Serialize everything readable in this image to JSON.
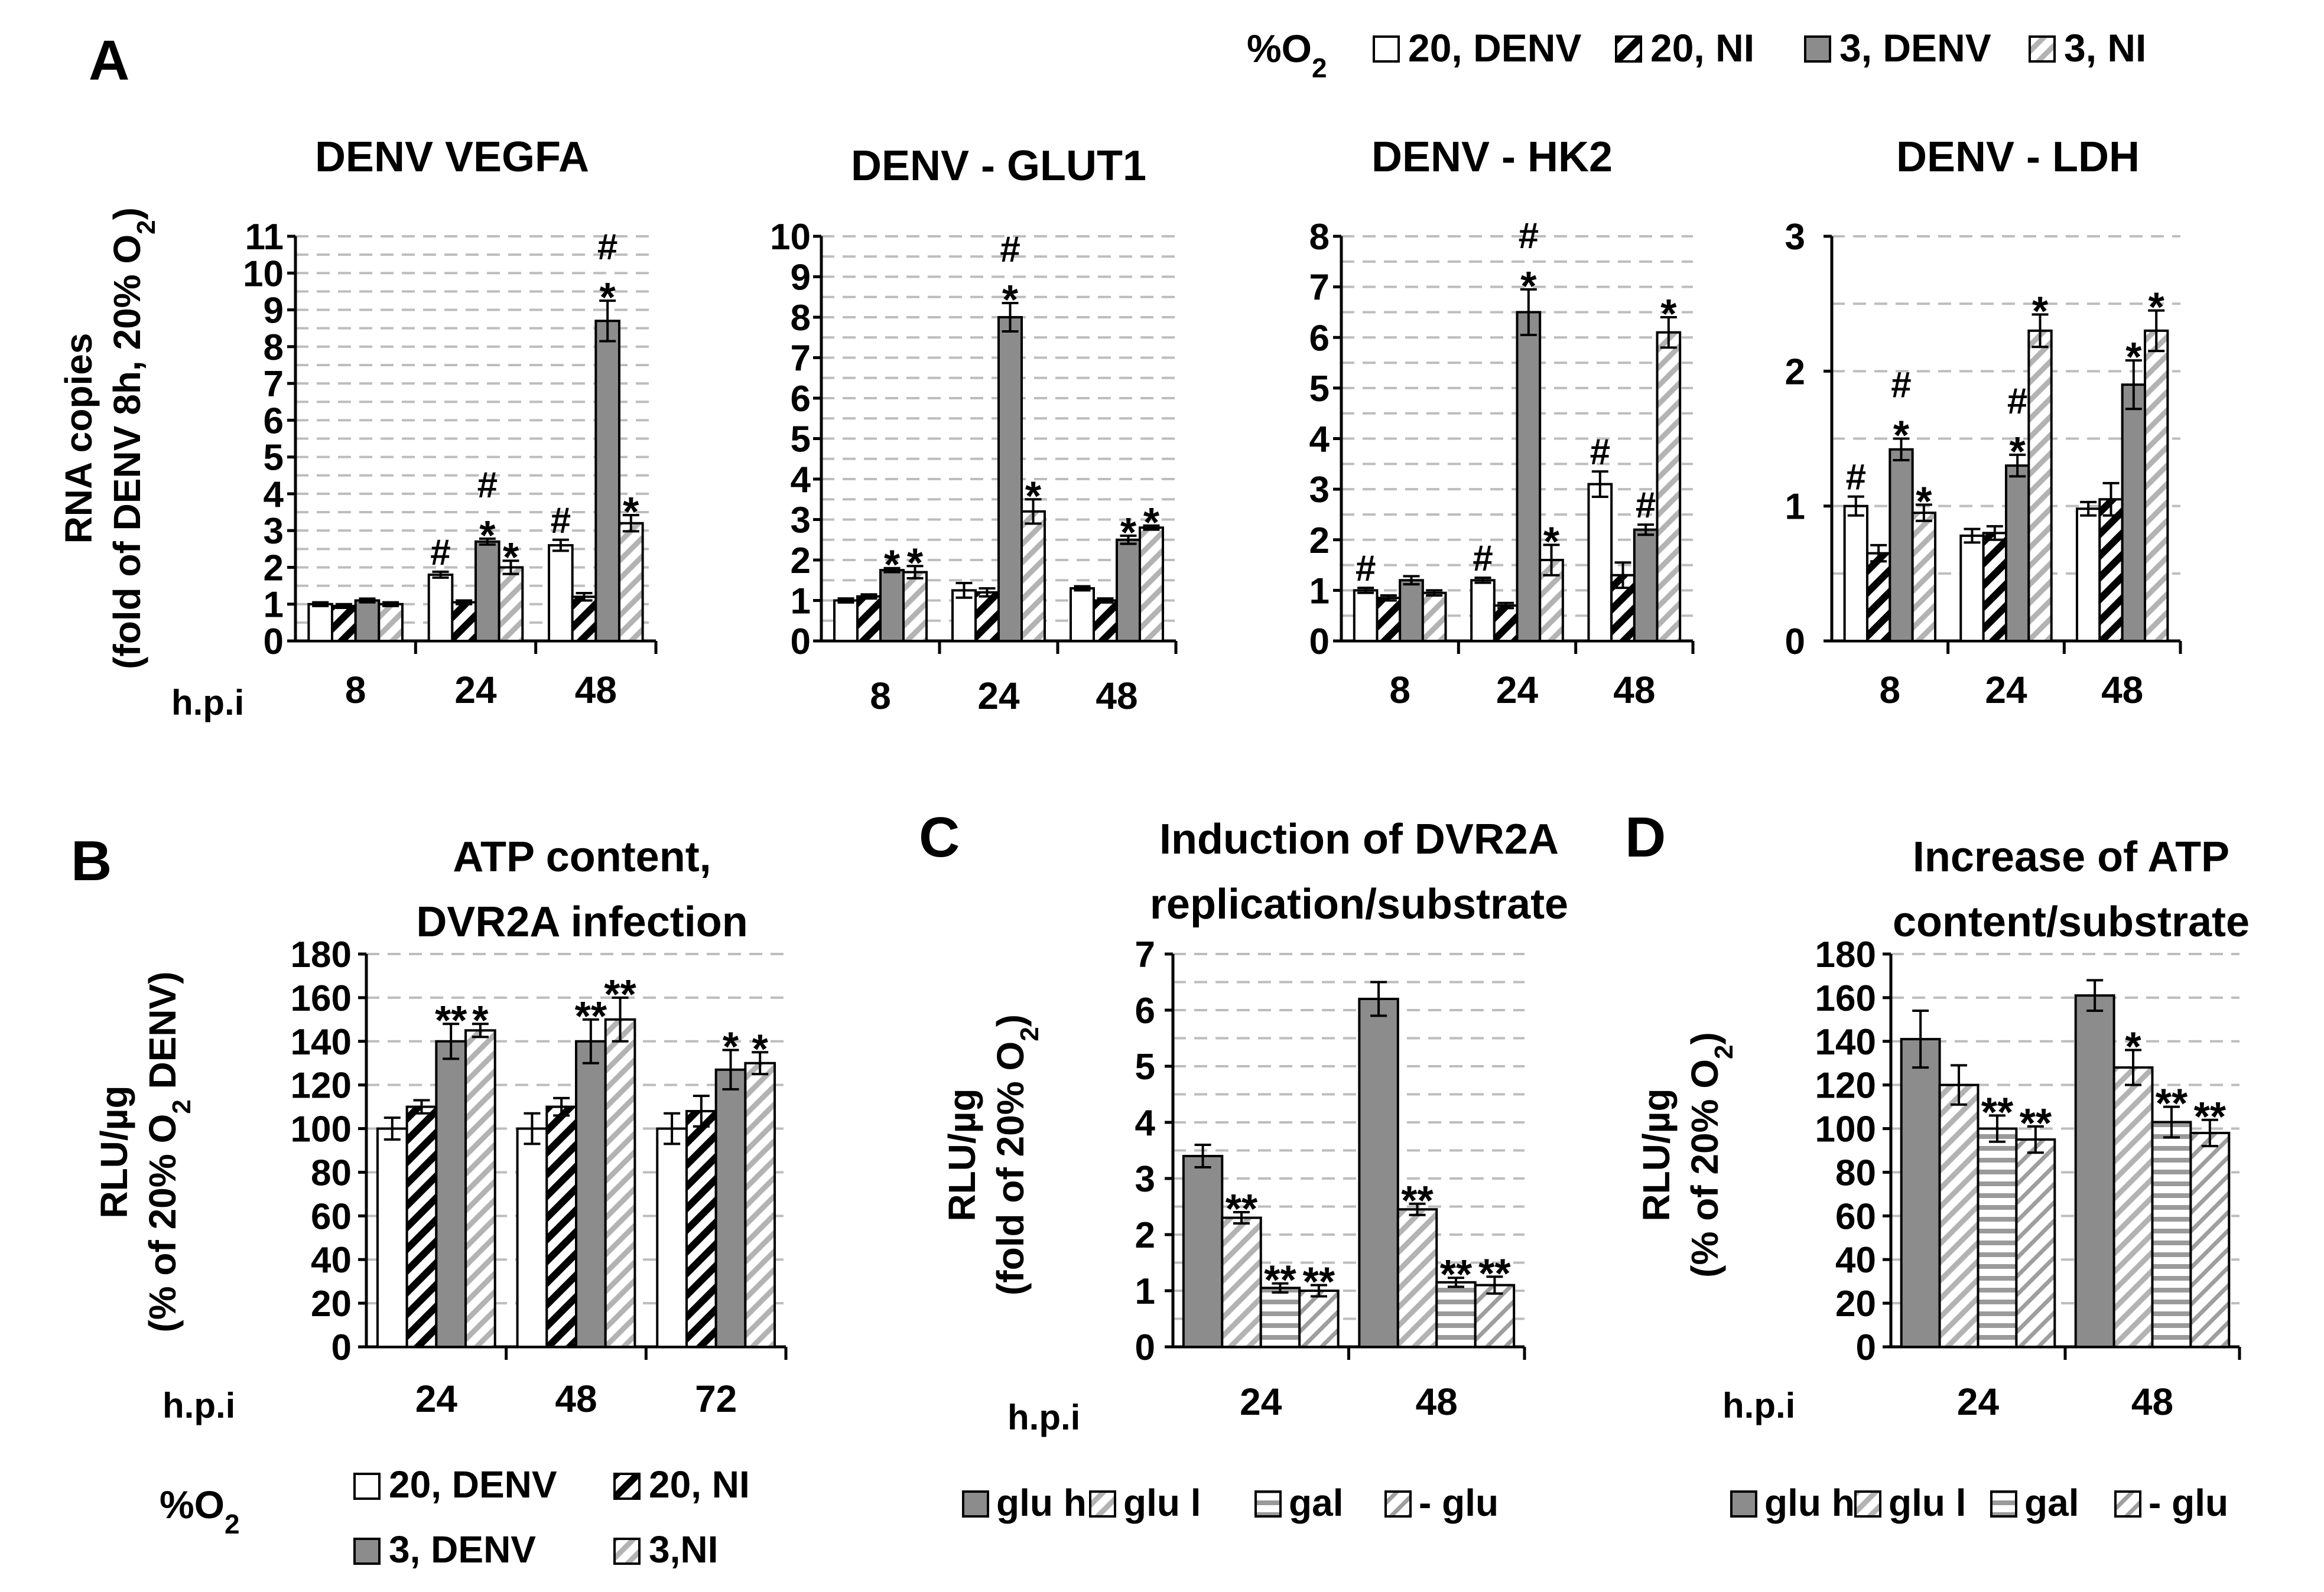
{
  "colors": {
    "white": "#ffffff",
    "gray": "#8c8c8c",
    "ink": "#000000",
    "grid": "#bdbdbd",
    "lightHatch": "#b3b3b3"
  },
  "panels": {
    "A": {
      "letter": "A"
    },
    "B": {
      "letter": "B"
    },
    "C": {
      "letter": "C"
    },
    "D": {
      "letter": "D"
    }
  },
  "legends": {
    "A": {
      "title": "%O",
      "title_sub": "2",
      "items": [
        "20, DENV",
        "20, NI",
        "3, DENV",
        "3, NI"
      ],
      "styles": [
        "white",
        "blackHatch",
        "gray",
        "lightHatch"
      ]
    },
    "B": {
      "title": "%O",
      "title_sub": "2",
      "items": [
        "20, DENV",
        "20, NI",
        "3, DENV",
        "3,NI"
      ],
      "styles": [
        "white",
        "blackHatch",
        "gray",
        "lightHatch"
      ]
    },
    "C": {
      "items": [
        "glu h",
        "glu l",
        "gal",
        "- glu"
      ],
      "styles": [
        "gray",
        "lightHatch",
        "hstripe",
        "lightHatch2"
      ]
    },
    "D": {
      "items": [
        "glu h",
        "glu l",
        "gal",
        "- glu"
      ],
      "styles": [
        "gray",
        "lightHatch",
        "hstripe",
        "lightHatch2"
      ]
    }
  },
  "chart_data": [
    {
      "id": "A1",
      "type": "bar",
      "title": "DENV VEGFA",
      "ylabel": [
        "RNA copies",
        "(fold of DENV 8h, 20% O",
        "2",
        ")"
      ],
      "xprefix": "h.p.i",
      "ylim": [
        0,
        11
      ],
      "yticks": [
        0,
        1,
        2,
        3,
        4,
        5,
        6,
        7,
        8,
        9,
        10,
        11
      ],
      "minor_grid": 0.5,
      "categories": [
        "8",
        "24",
        "48"
      ],
      "styles": [
        "white",
        "blackHatch",
        "gray",
        "lightHatch"
      ],
      "series": [
        {
          "name": "20, DENV",
          "values": [
            1.0,
            1.8,
            2.6
          ],
          "errors": [
            0.05,
            0.08,
            0.15
          ]
        },
        {
          "name": "20, NI",
          "values": [
            0.95,
            1.05,
            1.2
          ],
          "errors": [
            0.05,
            0.05,
            0.1
          ]
        },
        {
          "name": "3, DENV",
          "values": [
            1.1,
            2.7,
            8.7
          ],
          "errors": [
            0.05,
            0.08,
            0.55
          ]
        },
        {
          "name": "3, NI",
          "values": [
            1.0,
            2.0,
            3.2
          ],
          "errors": [
            0.05,
            0.18,
            0.22
          ]
        }
      ],
      "annotations": [
        {
          "cat": 1,
          "s": 0,
          "lines": [
            "#"
          ]
        },
        {
          "cat": 1,
          "s": 2,
          "lines": [
            "#",
            "*"
          ]
        },
        {
          "cat": 1,
          "s": 3,
          "lines": [
            "*"
          ]
        },
        {
          "cat": 2,
          "s": 0,
          "lines": [
            "#"
          ]
        },
        {
          "cat": 2,
          "s": 2,
          "lines": [
            "#",
            "*"
          ]
        },
        {
          "cat": 2,
          "s": 3,
          "lines": [
            "*"
          ]
        }
      ]
    },
    {
      "id": "A2",
      "type": "bar",
      "title": "DENV - GLUT1",
      "ylim": [
        0,
        10
      ],
      "yticks": [
        0,
        1,
        2,
        3,
        4,
        5,
        6,
        7,
        8,
        9,
        10
      ],
      "minor_grid": 0.5,
      "categories": [
        "8",
        "24",
        "48"
      ],
      "styles": [
        "white",
        "blackHatch",
        "gray",
        "lightHatch"
      ],
      "series": [
        {
          "name": "20, DENV",
          "values": [
            1.0,
            1.25,
            1.3
          ],
          "errors": [
            0.05,
            0.18,
            0.05
          ]
        },
        {
          "name": "20, NI",
          "values": [
            1.1,
            1.2,
            1.0
          ],
          "errors": [
            0.05,
            0.1,
            0.05
          ]
        },
        {
          "name": "3, DENV",
          "values": [
            1.75,
            8.0,
            2.5
          ],
          "errors": [
            0.05,
            0.35,
            0.1
          ]
        },
        {
          "name": "3, NI",
          "values": [
            1.7,
            3.2,
            2.8
          ],
          "errors": [
            0.15,
            0.3,
            0.05
          ]
        }
      ],
      "annotations": [
        {
          "cat": 0,
          "s": 2,
          "lines": [
            "*"
          ]
        },
        {
          "cat": 0,
          "s": 3,
          "lines": [
            "*"
          ]
        },
        {
          "cat": 1,
          "s": 2,
          "lines": [
            "#",
            "*"
          ]
        },
        {
          "cat": 1,
          "s": 3,
          "lines": [
            "*"
          ]
        },
        {
          "cat": 2,
          "s": 2,
          "lines": [
            "*"
          ]
        },
        {
          "cat": 2,
          "s": 3,
          "lines": [
            "*"
          ]
        }
      ]
    },
    {
      "id": "A3",
      "type": "bar",
      "title": "DENV - HK2",
      "ylim": [
        0,
        8
      ],
      "yticks": [
        0,
        1,
        2,
        3,
        4,
        5,
        6,
        7,
        8
      ],
      "minor_grid": 0.5,
      "categories": [
        "8",
        "24",
        "48"
      ],
      "styles": [
        "white",
        "blackHatch",
        "gray",
        "lightHatch"
      ],
      "series": [
        {
          "name": "20, DENV",
          "values": [
            1.0,
            1.2,
            3.1
          ],
          "errors": [
            0.05,
            0.05,
            0.25
          ]
        },
        {
          "name": "20, NI",
          "values": [
            0.85,
            0.7,
            1.3
          ],
          "errors": [
            0.05,
            0.05,
            0.25
          ]
        },
        {
          "name": "3, DENV",
          "values": [
            1.2,
            6.5,
            2.2
          ],
          "errors": [
            0.08,
            0.45,
            0.1
          ]
        },
        {
          "name": "3, NI",
          "values": [
            0.95,
            1.6,
            6.1
          ],
          "errors": [
            0.05,
            0.3,
            0.3
          ]
        }
      ],
      "annotations": [
        {
          "cat": 0,
          "s": 0,
          "lines": [
            "#"
          ]
        },
        {
          "cat": 1,
          "s": 0,
          "lines": [
            "#"
          ]
        },
        {
          "cat": 1,
          "s": 2,
          "lines": [
            "#",
            "*"
          ]
        },
        {
          "cat": 1,
          "s": 3,
          "lines": [
            "*"
          ]
        },
        {
          "cat": 2,
          "s": 0,
          "lines": [
            "#"
          ]
        },
        {
          "cat": 2,
          "s": 2,
          "lines": [
            "#"
          ]
        },
        {
          "cat": 2,
          "s": 3,
          "lines": [
            "*"
          ]
        }
      ]
    },
    {
      "id": "A4",
      "type": "bar",
      "title": "DENV - LDH",
      "ylim": [
        0,
        3
      ],
      "yticks": [
        0,
        1,
        2,
        3
      ],
      "minor_grid": 0.5,
      "categories": [
        "8",
        "24",
        "48"
      ],
      "styles": [
        "white",
        "blackHatch",
        "gray",
        "lightHatch"
      ],
      "series": [
        {
          "name": "20, DENV",
          "values": [
            1.0,
            0.78,
            0.98
          ],
          "errors": [
            0.07,
            0.05,
            0.05
          ]
        },
        {
          "name": "20, NI",
          "values": [
            0.65,
            0.8,
            1.05
          ],
          "errors": [
            0.06,
            0.05,
            0.12
          ]
        },
        {
          "name": "3, DENV",
          "values": [
            1.42,
            1.3,
            1.9
          ],
          "errors": [
            0.08,
            0.08,
            0.18
          ]
        },
        {
          "name": "3, NI",
          "values": [
            0.95,
            2.3,
            2.3
          ],
          "errors": [
            0.06,
            0.12,
            0.15
          ]
        }
      ],
      "annotations": [
        {
          "cat": 0,
          "s": 0,
          "lines": [
            "#"
          ]
        },
        {
          "cat": 0,
          "s": 2,
          "lines": [
            "#",
            "*"
          ]
        },
        {
          "cat": 0,
          "s": 3,
          "lines": [
            "*"
          ]
        },
        {
          "cat": 1,
          "s": 2,
          "lines": [
            "#",
            "*"
          ]
        },
        {
          "cat": 1,
          "s": 3,
          "lines": [
            "*"
          ]
        },
        {
          "cat": 2,
          "s": 2,
          "lines": [
            "*"
          ]
        },
        {
          "cat": 2,
          "s": 3,
          "lines": [
            "*"
          ]
        }
      ]
    },
    {
      "id": "B",
      "type": "bar",
      "title": [
        "ATP content,",
        "DVR2A infection"
      ],
      "ylabel": [
        "RLU/µg",
        "(% of 20% O",
        "2",
        " DENV)"
      ],
      "xprefix": "h.p.i",
      "ylim": [
        0,
        180
      ],
      "yticks": [
        0,
        20,
        40,
        60,
        80,
        100,
        120,
        140,
        160,
        180
      ],
      "minor_grid": null,
      "categories": [
        "24",
        "48",
        "72"
      ],
      "styles": [
        "white",
        "blackHatch",
        "gray",
        "lightHatch"
      ],
      "series": [
        {
          "name": "20, DENV",
          "values": [
            100,
            100,
            100
          ],
          "errors": [
            5,
            7,
            7
          ]
        },
        {
          "name": "20, NI",
          "values": [
            110,
            110,
            108
          ],
          "errors": [
            3,
            4,
            7
          ]
        },
        {
          "name": "3, DENV",
          "values": [
            140,
            140,
            127
          ],
          "errors": [
            8,
            10,
            9
          ]
        },
        {
          "name": "3, NI",
          "values": [
            145,
            150,
            130
          ],
          "errors": [
            3,
            10,
            5
          ]
        }
      ],
      "annotations": [
        {
          "cat": 0,
          "s": 2,
          "lines": [
            "**"
          ]
        },
        {
          "cat": 0,
          "s": 3,
          "lines": [
            "*"
          ]
        },
        {
          "cat": 1,
          "s": 2,
          "lines": [
            "**"
          ]
        },
        {
          "cat": 1,
          "s": 3,
          "lines": [
            "**"
          ]
        },
        {
          "cat": 2,
          "s": 2,
          "lines": [
            "*"
          ]
        },
        {
          "cat": 2,
          "s": 3,
          "lines": [
            "*"
          ]
        }
      ]
    },
    {
      "id": "C",
      "type": "bar",
      "title": [
        "Induction of DVR2A",
        "replication/substrate"
      ],
      "ylabel": [
        "RLU/µg",
        "(fold of 20% O",
        "2",
        ")"
      ],
      "xprefix": "h.p.i",
      "ylim": [
        0,
        7
      ],
      "yticks": [
        0,
        1,
        2,
        3,
        4,
        5,
        6,
        7
      ],
      "minor_grid": 0.5,
      "categories": [
        "24",
        "48"
      ],
      "styles": [
        "gray",
        "lightHatch",
        "hstripe",
        "lightHatch2"
      ],
      "series": [
        {
          "name": "glu h",
          "values": [
            3.4,
            6.2
          ],
          "errors": [
            0.2,
            0.3
          ]
        },
        {
          "name": "glu l",
          "values": [
            2.3,
            2.45
          ],
          "errors": [
            0.1,
            0.1
          ]
        },
        {
          "name": "gal",
          "values": [
            1.05,
            1.15
          ],
          "errors": [
            0.08,
            0.08
          ]
        },
        {
          "name": "- glu",
          "values": [
            1.0,
            1.1
          ],
          "errors": [
            0.1,
            0.15
          ]
        }
      ],
      "annotations": [
        {
          "cat": 0,
          "s": 1,
          "lines": [
            "**"
          ]
        },
        {
          "cat": 0,
          "s": 2,
          "lines": [
            "**"
          ]
        },
        {
          "cat": 0,
          "s": 3,
          "lines": [
            "**"
          ]
        },
        {
          "cat": 1,
          "s": 1,
          "lines": [
            "**"
          ]
        },
        {
          "cat": 1,
          "s": 2,
          "lines": [
            "**"
          ]
        },
        {
          "cat": 1,
          "s": 3,
          "lines": [
            "**"
          ]
        }
      ]
    },
    {
      "id": "D",
      "type": "bar",
      "title": [
        "Increase of  ATP",
        "content/substrate"
      ],
      "ylabel": [
        "RLU/µg",
        "(% of 20% O",
        "2",
        ")"
      ],
      "xprefix": "h.p.i",
      "ylim": [
        0,
        180
      ],
      "yticks": [
        0,
        20,
        40,
        60,
        80,
        100,
        120,
        140,
        160,
        180
      ],
      "minor_grid": null,
      "categories": [
        "24",
        "48"
      ],
      "styles": [
        "gray",
        "lightHatch",
        "hstripe",
        "lightHatch2"
      ],
      "series": [
        {
          "name": "glu h",
          "values": [
            141,
            161
          ],
          "errors": [
            13,
            7
          ]
        },
        {
          "name": "glu l",
          "values": [
            120,
            128
          ],
          "errors": [
            9,
            8
          ]
        },
        {
          "name": "gal",
          "values": [
            100,
            103
          ],
          "errors": [
            6,
            7
          ]
        },
        {
          "name": "- glu",
          "values": [
            95,
            98
          ],
          "errors": [
            6,
            6
          ]
        }
      ],
      "annotations": [
        {
          "cat": 0,
          "s": 2,
          "lines": [
            "**"
          ]
        },
        {
          "cat": 0,
          "s": 3,
          "lines": [
            "**"
          ]
        },
        {
          "cat": 1,
          "s": 1,
          "lines": [
            "*"
          ]
        },
        {
          "cat": 1,
          "s": 2,
          "lines": [
            "**"
          ]
        },
        {
          "cat": 1,
          "s": 3,
          "lines": [
            "**"
          ]
        }
      ]
    }
  ]
}
